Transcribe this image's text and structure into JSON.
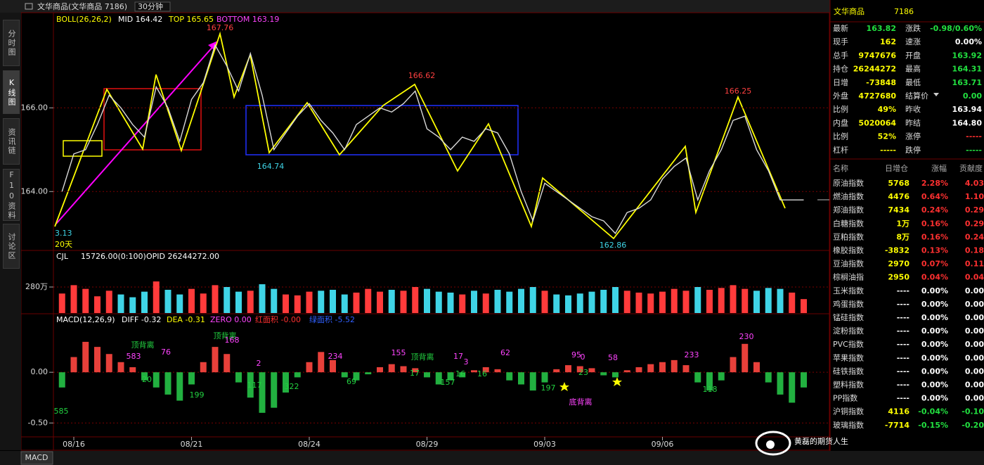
{
  "window": {
    "title": "文华商品(文华商品 7186)",
    "period": "30分钟",
    "bottom_tab": "MACD"
  },
  "sidebar": [
    "分时图",
    "K线图",
    "资讯链",
    "F10资料",
    "讨论区"
  ],
  "chart_data": [
    {
      "type": "line",
      "indicator": "BOLL(26,26,2)",
      "stats": [
        "MID 164.42",
        "TOP 165.65",
        "BOTTOM 163.19"
      ],
      "categories": [
        null,
        "08/16",
        null,
        null,
        null,
        null,
        null,
        null,
        null,
        null,
        null,
        "08/21",
        null,
        null,
        null,
        null,
        null,
        null,
        null,
        null,
        null,
        "08/24",
        null,
        null,
        null,
        null,
        null,
        null,
        null,
        null,
        null,
        "08/29",
        null,
        null,
        null,
        null,
        null,
        null,
        null,
        null,
        null,
        "09/03",
        null,
        null,
        null,
        null,
        null,
        null,
        null,
        null,
        null,
        "09/06",
        null,
        null,
        null,
        null,
        null,
        null,
        null,
        null,
        null,
        null,
        null,
        null
      ],
      "values": [
        164.0,
        164.9,
        165.0,
        165.6,
        166.3,
        166.0,
        165.6,
        165.3,
        166.5,
        166.0,
        165.2,
        166.2,
        166.6,
        167.5,
        167.0,
        166.4,
        167.3,
        166.3,
        165.0,
        165.4,
        165.8,
        166.1,
        165.7,
        165.4,
        165.0,
        165.6,
        165.8,
        166.0,
        165.9,
        166.1,
        166.4,
        165.5,
        165.3,
        165.0,
        165.3,
        165.2,
        165.5,
        165.4,
        164.9,
        164.0,
        163.3,
        164.2,
        164.0,
        163.8,
        163.6,
        163.4,
        163.3,
        163.0,
        163.5,
        163.6,
        163.8,
        164.3,
        164.6,
        164.8,
        163.8,
        164.5,
        165.0,
        165.7,
        165.8,
        165.0,
        164.5,
        163.8,
        163.8,
        163.8
      ],
      "color": "#d8d8d8",
      "ylim": [
        162.61,
        168.24
      ],
      "yticks": [
        {
          "value": 166,
          "label": "166.00"
        },
        {
          "value": 164,
          "label": "164.00"
        }
      ],
      "annotations": [
        167.76,
        166.62,
        164.74,
        162.86,
        166.25
      ],
      "edge_label": "3.13",
      "period_label": "20天"
    },
    {
      "type": "bar",
      "indicator": "CJL",
      "stats": [
        "15726.00(0:100)",
        "OPID 26244272.00"
      ],
      "values": [
        210,
        300,
        260,
        180,
        240,
        200,
        170,
        230,
        340,
        250,
        200,
        260,
        210,
        300,
        280,
        230,
        240,
        310,
        260,
        200,
        190,
        230,
        240,
        250,
        200,
        220,
        260,
        230,
        250,
        240,
        280,
        260,
        230,
        220,
        200,
        240,
        210,
        250,
        230,
        260,
        280,
        240,
        200,
        190,
        210,
        230,
        250,
        280,
        240,
        220,
        210,
        230,
        260,
        240,
        280,
        250,
        270,
        300,
        260,
        240,
        270,
        260,
        220,
        150
      ],
      "colors": {
        "up": "#ff3b3b",
        "down": "#3fd4e6"
      },
      "ylim": [
        0,
        666
      ],
      "yticks": [
        {
          "value": 280,
          "label": "280万"
        }
      ]
    },
    {
      "type": "bar",
      "indicator": "MACD(12,26,9)",
      "stats": [
        "DIFF -0.32",
        "DEA -0.31",
        "ZERO 0.00",
        "红面积 -0.00",
        "绿面积 -5.52"
      ],
      "values": [
        -0.15,
        0.15,
        0.3,
        0.25,
        0.18,
        0.1,
        0.05,
        -0.08,
        -0.15,
        -0.22,
        -0.28,
        -0.12,
        0.1,
        0.25,
        0.18,
        -0.1,
        -0.25,
        -0.4,
        -0.35,
        -0.2,
        -0.05,
        0.1,
        0.2,
        0.12,
        -0.05,
        -0.08,
        -0.02,
        0.05,
        0.08,
        0.06,
        0.04,
        -0.05,
        -0.12,
        -0.08,
        -0.05,
        0.02,
        0.05,
        0.03,
        -0.08,
        -0.12,
        -0.18,
        -0.1,
        0.03,
        0.07,
        0.06,
        0.04,
        -0.03,
        -0.05,
        0.02,
        0.05,
        0.08,
        0.1,
        0.12,
        0.07,
        -0.1,
        -0.18,
        -0.08,
        0.15,
        0.28,
        0.1,
        -0.1,
        -0.22,
        -0.3,
        -0.15
      ],
      "colors": {
        "up": "#e8403a",
        "down": "#22b040"
      },
      "ylim": [
        -0.63,
        0.57
      ],
      "yticks": [
        {
          "value": 0,
          "label": "0.00"
        },
        {
          "value": -0.5,
          "label": "-0.50"
        }
      ],
      "annotations": [
        "585",
        "583",
        "顶背离",
        "76",
        "20",
        "199",
        "顶背离",
        "168",
        "2",
        "117",
        "322",
        "234",
        "69",
        "155",
        "顶背离",
        "17",
        "157",
        "17",
        "3",
        "16",
        "16",
        "62",
        "197",
        "95",
        "0",
        "23",
        "58",
        "底背离",
        "233",
        "118",
        "230"
      ]
    }
  ],
  "quote": {
    "name": "文华商品",
    "code": "7186",
    "rows": [
      [
        [
          "最新",
          "163.82"
        ],
        [
          "涨跌",
          "-0.98/0.60%"
        ]
      ],
      [
        [
          "现手",
          "162"
        ],
        [
          "速涨",
          "0.00%"
        ]
      ],
      [
        [
          "总手",
          "9747676"
        ],
        [
          "开盘",
          "163.92"
        ]
      ],
      [
        [
          "持仓",
          "26244272"
        ],
        [
          "最高",
          "164.31"
        ]
      ],
      [
        [
          "日增",
          "-73848"
        ],
        [
          "最低",
          "163.71"
        ]
      ],
      [
        [
          "外盘",
          "4727680"
        ],
        [
          "结算价",
          "0.00"
        ]
      ],
      [
        [
          "比例",
          "49%"
        ],
        [
          "昨收",
          "163.94"
        ]
      ],
      [
        [
          "内盘",
          "5020064"
        ],
        [
          "昨结",
          "164.80"
        ]
      ],
      [
        [
          "比例",
          "52%"
        ],
        [
          "涨停",
          "-----"
        ]
      ],
      [
        [
          "杠杆",
          "-----"
        ],
        [
          "跌停",
          "-----"
        ]
      ]
    ]
  },
  "ranking": {
    "headers": [
      "名称",
      "日增仓",
      "涨幅",
      "贡献度"
    ],
    "rows": [
      [
        "原油指数",
        "5768",
        "2.28%",
        "4.03"
      ],
      [
        "燃油指数",
        "4476",
        "0.64%",
        "1.10"
      ],
      [
        "郑油指数",
        "7434",
        "0.24%",
        "0.29"
      ],
      [
        "白糖指数",
        "1万",
        "0.16%",
        "0.29"
      ],
      [
        "豆粕指数",
        "8万",
        "0.16%",
        "0.24"
      ],
      [
        "橡胶指数",
        "-3832",
        "0.13%",
        "0.18"
      ],
      [
        "豆油指数",
        "2970",
        "0.07%",
        "0.11"
      ],
      [
        "棕榈油指",
        "2950",
        "0.04%",
        "0.04"
      ],
      [
        "玉米指数",
        "----",
        "0.00%",
        "0.00"
      ],
      [
        "鸡蛋指数",
        "----",
        "0.00%",
        "0.00"
      ],
      [
        "锰硅指数",
        "----",
        "0.00%",
        "0.00"
      ],
      [
        "淀粉指数",
        "----",
        "0.00%",
        "0.00"
      ],
      [
        "PVC指数",
        "----",
        "0.00%",
        "0.00"
      ],
      [
        "苹果指数",
        "----",
        "0.00%",
        "0.00"
      ],
      [
        "硅铁指数",
        "----",
        "0.00%",
        "0.00"
      ],
      [
        "塑料指数",
        "----",
        "0.00%",
        "0.00"
      ],
      [
        "PP指数",
        "----",
        "0.00%",
        "0.00"
      ],
      [
        "沪铜指数",
        "4116",
        "-0.04%",
        "-0.10"
      ],
      [
        "玻璃指数",
        "-7714",
        "-0.15%",
        "-0.20"
      ]
    ]
  },
  "watermark": "黄磊的期货人生"
}
